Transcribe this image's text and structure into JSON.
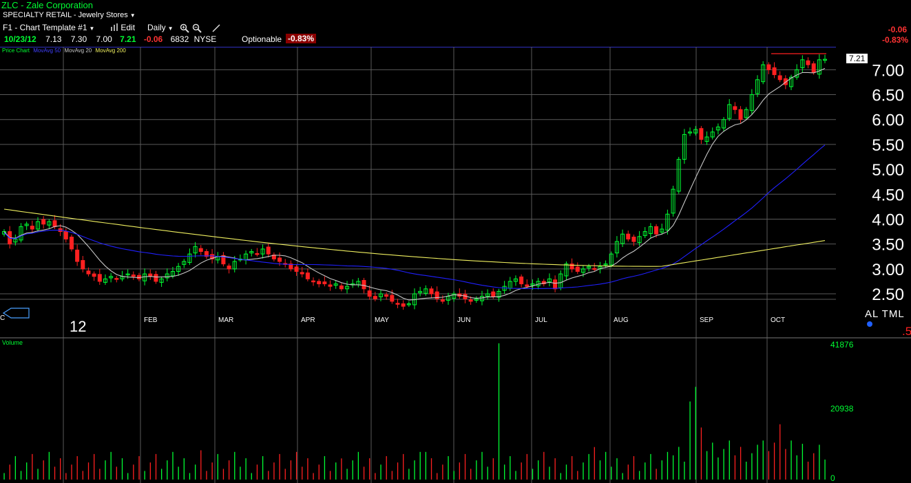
{
  "header": {
    "symbol_name": "ZLC - Zale Corporation",
    "sector": "SPECIALTY RETAIL - Jewelry Stores"
  },
  "toolbar": {
    "template": "F1 - Chart Template #1",
    "edit": "Edit",
    "period": "Daily"
  },
  "quote": {
    "date": "10/23/12",
    "open": "7.13",
    "high": "7.30",
    "low": "7.00",
    "close": "7.21",
    "change": "-0.06",
    "volume": "6832",
    "exchange": "NYSE",
    "optionable": "Optionable",
    "pct_change": "-0.83%"
  },
  "right_header": {
    "change": "-0.06",
    "pct_change": "-0.83%"
  },
  "legend": {
    "price_chart": "Price Chart",
    "ma50": "MovAvg 50",
    "ma20": "MovAvg 20",
    "ma200": "MovAvg 200"
  },
  "colors": {
    "up": "#00ff33",
    "down": "#ff2020",
    "ma20": "#c8c8c8",
    "ma50": "#2020ff",
    "ma200": "#f0f060",
    "grid": "#5a5a5a",
    "frame": "#3030c0"
  },
  "year_label": "12",
  "axis_partial_label": "C",
  "right_partial": {
    "letters": "AL TML",
    "digit": ".5"
  },
  "last_price_tag": "7.21",
  "volume_panel": {
    "label": "Volume",
    "ticks": [
      "41876",
      "20938",
      "0"
    ]
  },
  "chart_data": [
    {
      "type": "candlestick",
      "title": "",
      "months": [
        "FEB",
        "MAR",
        "APR",
        "MAY",
        "JUN",
        "JUL",
        "AUG",
        "SEP",
        "OCT"
      ],
      "y_ticks": [
        "7.00",
        "6.50",
        "6.00",
        "5.50",
        "5.00",
        "4.50",
        "4.00",
        "3.50",
        "3.00",
        "2.50"
      ],
      "ylim": [
        2.1,
        7.35
      ],
      "close_series": [
        3.75,
        3.5,
        3.6,
        3.85,
        3.9,
        3.8,
        3.95,
        3.9,
        3.95,
        3.85,
        3.75,
        3.6,
        3.4,
        3.15,
        3.0,
        2.9,
        2.85,
        2.75,
        2.8,
        2.85,
        2.8,
        2.85,
        2.9,
        2.85,
        2.8,
        2.9,
        2.85,
        2.75,
        2.8,
        2.9,
        2.95,
        3.05,
        3.15,
        3.3,
        3.45,
        3.35,
        3.25,
        3.2,
        3.25,
        3.1,
        3.0,
        3.15,
        3.2,
        3.3,
        3.35,
        3.3,
        3.4,
        3.3,
        3.2,
        3.15,
        3.1,
        3.0,
        2.95,
        2.9,
        2.8,
        2.75,
        2.7,
        2.7,
        2.65,
        2.7,
        2.6,
        2.65,
        2.7,
        2.75,
        2.6,
        2.45,
        2.4,
        2.5,
        2.45,
        2.35,
        2.3,
        2.25,
        2.3,
        2.5,
        2.55,
        2.6,
        2.5,
        2.4,
        2.35,
        2.45,
        2.5,
        2.45,
        2.4,
        2.35,
        2.4,
        2.45,
        2.5,
        2.45,
        2.55,
        2.65,
        2.75,
        2.8,
        2.7,
        2.65,
        2.7,
        2.75,
        2.7,
        2.8,
        2.6,
        2.9,
        3.1,
        3.0,
        2.95,
        3.0,
        3.05,
        3.0,
        3.05,
        3.1,
        3.3,
        3.55,
        3.7,
        3.6,
        3.55,
        3.65,
        3.75,
        3.85,
        3.7,
        3.8,
        4.1,
        4.6,
        5.2,
        5.7,
        5.75,
        5.8,
        5.6,
        5.65,
        5.75,
        5.85,
        6.0,
        6.3,
        6.2,
        6.0,
        6.2,
        6.5,
        6.8,
        7.1,
        7.0,
        6.9,
        6.8,
        6.7,
        6.85,
        7.0,
        7.2,
        7.1,
        6.95,
        7.2,
        7.21
      ],
      "moving_averages": [
        {
          "name": "MovAvg 20",
          "period": 20
        },
        {
          "name": "MovAvg 50",
          "period": 50
        },
        {
          "name": "MovAvg 200",
          "period": 200
        }
      ]
    },
    {
      "type": "bar",
      "title": "Volume",
      "ylim": [
        0,
        41876
      ],
      "spikes": [
        {
          "index": 35,
          "value": 9000
        },
        {
          "index": 60,
          "value": 6500
        },
        {
          "index": 75,
          "value": 8500
        },
        {
          "index": 88,
          "value": 41876
        },
        {
          "index": 105,
          "value": 10000
        },
        {
          "index": 122,
          "value": 24000
        },
        {
          "index": 123,
          "value": 28500
        },
        {
          "index": 124,
          "value": 16000
        },
        {
          "index": 135,
          "value": 12000
        },
        {
          "index": 138,
          "value": 17000
        },
        {
          "index": 142,
          "value": 11000
        }
      ]
    }
  ]
}
